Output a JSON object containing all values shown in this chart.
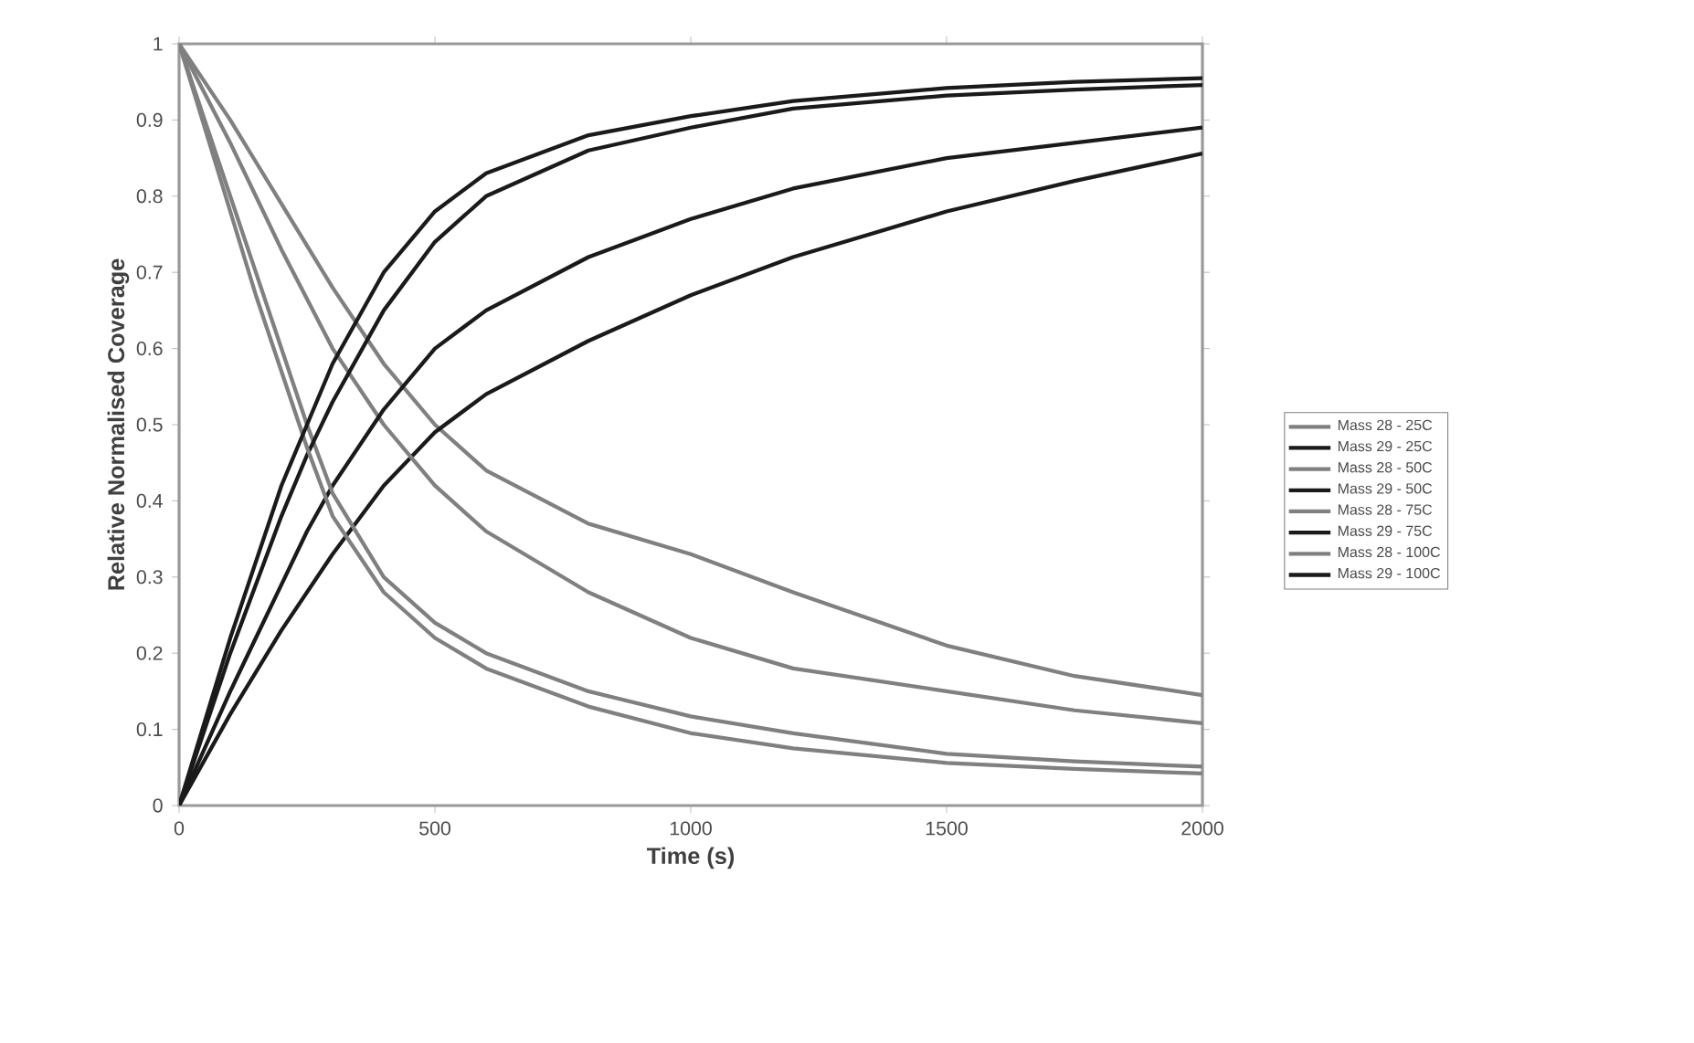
{
  "chart_data": {
    "type": "line",
    "xlabel": "Time (s)",
    "ylabel": "Relative Normalised Coverage",
    "x": [
      0,
      50,
      100,
      150,
      200,
      250,
      300,
      400,
      500,
      600,
      800,
      1000,
      1200,
      1500,
      1750,
      2000
    ],
    "series": [
      {
        "name": "Mass 28 - 25C",
        "color": "#808080",
        "values": [
          1,
          0.95,
          0.9,
          0.845,
          0.79,
          0.735,
          0.68,
          0.58,
          0.5,
          0.44,
          0.37,
          0.33,
          0.28,
          0.21,
          0.17,
          0.145
        ]
      },
      {
        "name": "Mass 29 - 25C",
        "color": "#1a1a1a",
        "values": [
          0,
          0.06,
          0.12,
          0.175,
          0.23,
          0.28,
          0.33,
          0.42,
          0.49,
          0.54,
          0.61,
          0.67,
          0.72,
          0.78,
          0.82,
          0.856
        ]
      },
      {
        "name": "Mass 28 - 50C",
        "color": "#808080",
        "values": [
          1,
          0.935,
          0.87,
          0.8,
          0.73,
          0.665,
          0.6,
          0.5,
          0.42,
          0.36,
          0.28,
          0.22,
          0.18,
          0.15,
          0.125,
          0.108
        ]
      },
      {
        "name": "Mass 29 - 50C",
        "color": "#1a1a1a",
        "values": [
          0,
          0.075,
          0.15,
          0.22,
          0.29,
          0.36,
          0.42,
          0.52,
          0.6,
          0.65,
          0.72,
          0.77,
          0.81,
          0.85,
          0.87,
          0.89
        ]
      },
      {
        "name": "Mass 28 - 75C",
        "color": "#808080",
        "values": [
          1,
          0.9,
          0.8,
          0.7,
          0.6,
          0.5,
          0.41,
          0.3,
          0.24,
          0.2,
          0.15,
          0.117,
          0.095,
          0.068,
          0.058,
          0.051
        ]
      },
      {
        "name": "Mass 29 - 75C",
        "color": "#1a1a1a",
        "values": [
          0,
          0.1,
          0.2,
          0.29,
          0.38,
          0.46,
          0.53,
          0.65,
          0.74,
          0.8,
          0.86,
          0.89,
          0.915,
          0.932,
          0.94,
          0.946
        ]
      },
      {
        "name": "Mass 28 - 100C",
        "color": "#808080",
        "values": [
          1,
          0.89,
          0.78,
          0.67,
          0.57,
          0.47,
          0.38,
          0.28,
          0.22,
          0.18,
          0.13,
          0.095,
          0.075,
          0.056,
          0.048,
          0.042
        ]
      },
      {
        "name": "Mass 29 - 100C",
        "color": "#1a1a1a",
        "values": [
          0,
          0.11,
          0.22,
          0.32,
          0.42,
          0.5,
          0.58,
          0.7,
          0.78,
          0.83,
          0.88,
          0.905,
          0.925,
          0.942,
          0.95,
          0.955
        ]
      }
    ],
    "xlim": [
      0,
      2000
    ],
    "ylim": [
      0,
      1
    ],
    "xticks": [
      0,
      500,
      1000,
      1500,
      2000
    ],
    "yticks": [
      0,
      0.1,
      0.2,
      0.3,
      0.4,
      0.5,
      0.6,
      0.7,
      0.8,
      0.9,
      1
    ],
    "legend": "right"
  }
}
